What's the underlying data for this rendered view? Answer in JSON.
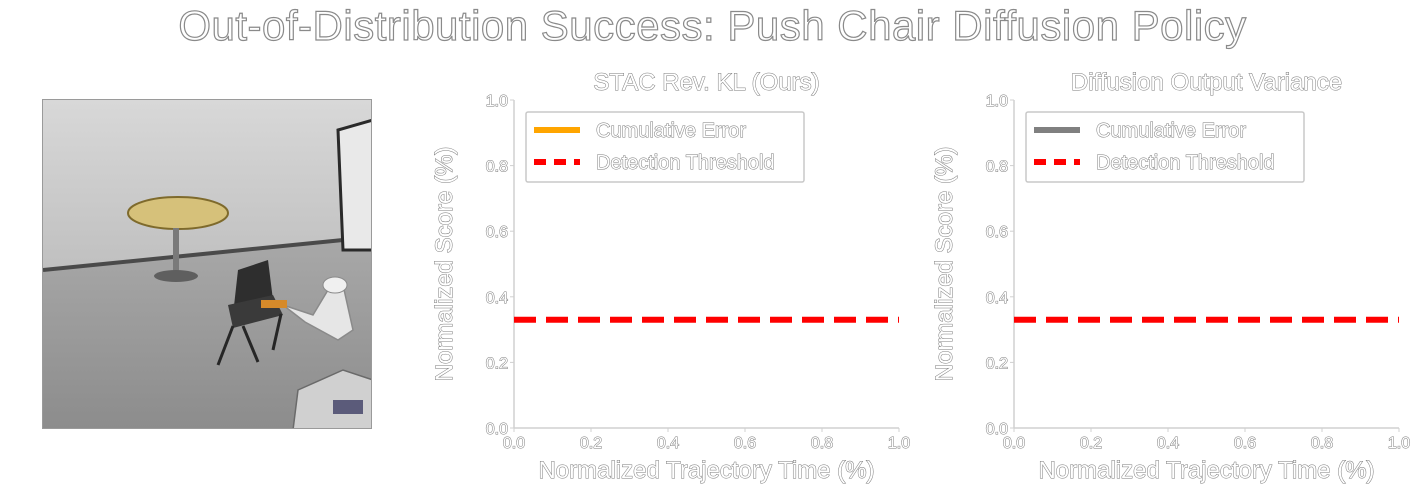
{
  "suptitle": "Out-of-Distribution Success: Push Chair Diffusion Policy",
  "colors": {
    "orange": "#ffa500",
    "gray": "#808080",
    "red": "#ff0000",
    "axis": "#d0d0d0"
  },
  "chart_data": [
    {
      "type": "line",
      "title": "STAC Rev. KL (Ours)",
      "xlabel": "Normalized Trajectory Time (%)",
      "ylabel": "Normalized Score (%)",
      "xlim": [
        0.0,
        1.0
      ],
      "ylim": [
        0.0,
        1.0
      ],
      "xticks": [
        "0.0",
        "0.2",
        "0.4",
        "0.6",
        "0.8",
        "1.0"
      ],
      "yticks": [
        "0.0",
        "0.2",
        "0.4",
        "0.6",
        "0.8",
        "1.0"
      ],
      "grid": false,
      "legend_position": "top-left",
      "series": [
        {
          "name": "Cumulative Error",
          "color": "#ffa500",
          "style": "solid",
          "x": [],
          "y": []
        },
        {
          "name": "Detection Threshold",
          "color": "#ff0000",
          "style": "dashed",
          "x": [
            0.0,
            1.0
          ],
          "y": [
            0.33,
            0.33
          ]
        }
      ]
    },
    {
      "type": "line",
      "title": "Diffusion Output Variance",
      "xlabel": "Normalized Trajectory Time (%)",
      "ylabel": "Normalized Score (%)",
      "xlim": [
        0.0,
        1.0
      ],
      "ylim": [
        0.0,
        1.0
      ],
      "xticks": [
        "0.0",
        "0.2",
        "0.4",
        "0.6",
        "0.8",
        "1.0"
      ],
      "yticks": [
        "0.0",
        "0.2",
        "0.4",
        "0.6",
        "0.8",
        "1.0"
      ],
      "grid": false,
      "legend_position": "top-left",
      "series": [
        {
          "name": "Cumulative Error",
          "color": "#808080",
          "style": "solid",
          "x": [],
          "y": []
        },
        {
          "name": "Detection Threshold",
          "color": "#ff0000",
          "style": "dashed",
          "x": [
            0.0,
            1.0
          ],
          "y": [
            0.33,
            0.33
          ]
        }
      ]
    }
  ]
}
